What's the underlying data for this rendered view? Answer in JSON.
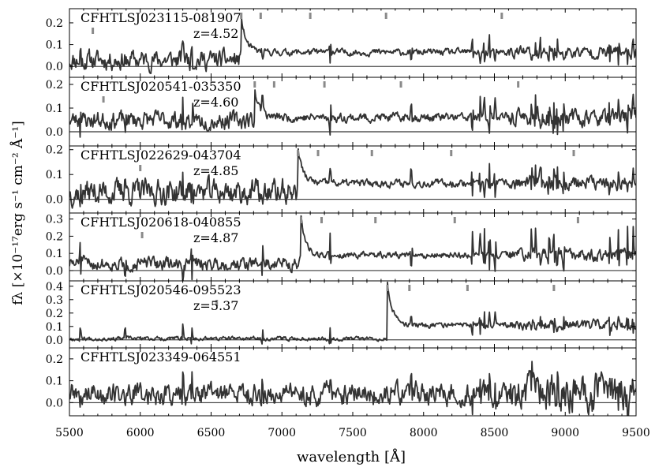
{
  "figure": {
    "xlabel": "wavelength [Å]",
    "ylabel": "fλ [×10⁻¹⁷erg s⁻¹ cm⁻² Å⁻¹]",
    "xticks": [
      "5500",
      "6000",
      "6500",
      "7000",
      "7500",
      "8000",
      "8500",
      "9000",
      "9500"
    ]
  },
  "chart_data": [
    {
      "type": "line",
      "name": "CFHTLSJ023115-081907",
      "redshift_label": "z=4.52",
      "xlim": [
        5500,
        9500
      ],
      "ylim": [
        -0.05,
        0.265
      ],
      "yticks": [
        0.0,
        0.1,
        0.2
      ],
      "ytick_labels": [
        "0.0",
        "0.1",
        "0.2"
      ],
      "line_markers_x": [
        5665,
        6713,
        6850,
        7200,
        7735,
        8552
      ],
      "spectrum": {
        "break_x": 6713,
        "pre_level": 0.03,
        "pre_noise": 0.035,
        "peak_height": 0.15,
        "post_level": 0.065,
        "post_noise": 0.012,
        "skyline_amp": 0.07,
        "seed": 11
      }
    },
    {
      "type": "line",
      "name": "CFHTLSJ020541-035350",
      "redshift_label": "z=4.60",
      "xlim": [
        5500,
        9500
      ],
      "ylim": [
        -0.06,
        0.23
      ],
      "yticks": [
        0.0,
        0.1,
        0.2
      ],
      "ytick_labels": [
        "0.0",
        "0.1",
        "0.2"
      ],
      "line_markers_x": [
        5740,
        6808,
        6945,
        7300,
        7840,
        8668
      ],
      "spectrum": {
        "break_x": 6808,
        "pre_level": 0.05,
        "pre_noise": 0.03,
        "peak_height": 0.12,
        "post_level": 0.06,
        "post_noise": 0.015,
        "skyline_amp": 0.09,
        "seed": 23
      }
    },
    {
      "type": "line",
      "name": "CFHTLSJ022629-043704",
      "redshift_label": "z=4.85",
      "xlim": [
        5500,
        9500
      ],
      "ylim": [
        -0.055,
        0.215
      ],
      "yticks": [
        0.0,
        0.1,
        0.2
      ],
      "ytick_labels": [
        "0.0",
        "0.1",
        "0.2"
      ],
      "line_markers_x": [
        6000,
        7113,
        7255,
        7635,
        8195,
        9060
      ],
      "spectrum": {
        "break_x": 7113,
        "pre_level": 0.03,
        "pre_noise": 0.04,
        "peak_height": 0.14,
        "post_level": 0.065,
        "post_noise": 0.012,
        "skyline_amp": 0.07,
        "seed": 37
      }
    },
    {
      "type": "line",
      "name": "CFHTLSJ020618-040855",
      "redshift_label": "z=4.87",
      "xlim": [
        5500,
        9500
      ],
      "ylim": [
        -0.06,
        0.335
      ],
      "yticks": [
        0.0,
        0.1,
        0.2,
        0.3
      ],
      "ytick_labels": [
        "0.0",
        "0.1",
        "0.2",
        "0.3"
      ],
      "line_markers_x": [
        6013,
        7135,
        7280,
        7660,
        8220,
        9090
      ],
      "spectrum": {
        "break_x": 7135,
        "pre_level": 0.04,
        "pre_noise": 0.03,
        "peak_height": 0.21,
        "post_level": 0.09,
        "post_noise": 0.015,
        "skyline_amp": 0.15,
        "seed": 51
      }
    },
    {
      "type": "line",
      "name": "CFHTLSJ020546-095523",
      "redshift_label": "z=5.37",
      "xlim": [
        5500,
        9500
      ],
      "ylim": [
        -0.06,
        0.44
      ],
      "yticks": [
        0.0,
        0.1,
        0.2,
        0.3,
        0.4
      ],
      "ytick_labels": [
        "0.0",
        "0.1",
        "0.2",
        "0.3",
        "0.4"
      ],
      "line_markers_x": [
        6540,
        7745,
        7900,
        8310,
        8920
      ],
      "spectrum": {
        "break_x": 7745,
        "pre_level": 0.01,
        "pre_noise": 0.012,
        "peak_height": 0.33,
        "post_level": 0.11,
        "post_noise": 0.015,
        "skyline_amp": 0.09,
        "seed": 67
      }
    },
    {
      "type": "line",
      "name": "CFHTLSJ023349-064551",
      "redshift_label": "",
      "xlim": [
        5500,
        9500
      ],
      "ylim": [
        -0.06,
        0.25
      ],
      "yticks": [
        0.0,
        0.1,
        0.2
      ],
      "ytick_labels": [
        "0.0",
        "0.1",
        "0.2"
      ],
      "line_markers_x": [],
      "spectrum": {
        "break_x": 0,
        "pre_level": 0.04,
        "pre_noise": 0.04,
        "peak_height": 0.0,
        "post_level": 0.07,
        "post_noise": 0.015,
        "skyline_amp": 0.08,
        "seed": 89
      }
    }
  ]
}
